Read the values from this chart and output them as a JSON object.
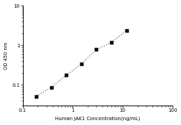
{
  "x_values": [
    0.188,
    0.375,
    0.75,
    1.5,
    3.0,
    6.0,
    12.0
  ],
  "y_values": [
    0.052,
    0.088,
    0.175,
    0.34,
    0.78,
    1.18,
    2.35
  ],
  "xlabel": "Human JAK1 Concentration(ng/mL)",
  "ylabel": "OD 450 nm",
  "xlim": [
    0.1,
    100
  ],
  "ylim": [
    0.03,
    10
  ],
  "xticks": [
    0.1,
    1,
    10,
    100
  ],
  "xtick_labels": [
    "0.1",
    "1",
    "10",
    "100"
  ],
  "yticks": [
    0.1,
    1,
    10
  ],
  "ytick_labels": [
    "0.1",
    "1",
    "10"
  ],
  "marker": "s",
  "marker_color": "#111111",
  "marker_size": 3.5,
  "line_style": ":",
  "line_color": "#777777",
  "line_width": 1.0,
  "background_color": "#ffffff"
}
